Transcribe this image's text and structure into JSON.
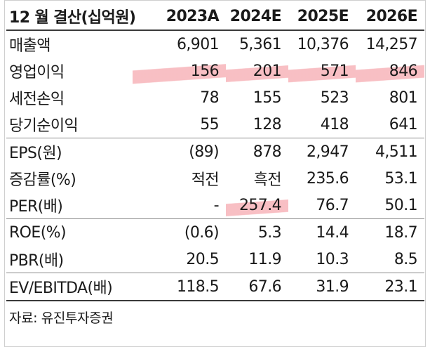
{
  "table": {
    "header": [
      "12 월 결산(십억원)",
      "2023A",
      "2024E",
      "2025E",
      "2026E"
    ],
    "rows": [
      {
        "label": "매출액",
        "values": [
          "6,901",
          "5,361",
          "10,376",
          "14,257"
        ]
      },
      {
        "label": "영업이익",
        "values": [
          "156",
          "201",
          "571",
          "846"
        ]
      },
      {
        "label": "세전손익",
        "values": [
          "78",
          "155",
          "523",
          "801"
        ]
      },
      {
        "label": "당기순이익",
        "values": [
          "55",
          "128",
          "418",
          "641"
        ]
      },
      {
        "label": "EPS(원)",
        "values": [
          "(89)",
          "878",
          "2,947",
          "4,511"
        ]
      },
      {
        "label": "증감률(%)",
        "values": [
          "적전",
          "흑전",
          "235.6",
          "53.1"
        ]
      },
      {
        "label": "PER(배)",
        "values": [
          "-",
          "257.4",
          "76.7",
          "50.1"
        ]
      },
      {
        "label": "ROE(%)",
        "values": [
          "(0.6)",
          "5.3",
          "14.4",
          "18.7"
        ]
      },
      {
        "label": "PBR(배)",
        "values": [
          "20.5",
          "11.9",
          "10.3",
          "8.5"
        ]
      },
      {
        "label": "EV/EBITDA(배)",
        "values": [
          "118.5",
          "67.6",
          "31.9",
          "23.1"
        ]
      }
    ]
  },
  "source": "자료: 유진투자증권",
  "colors": {
    "highlight": "#f7b4b9",
    "rule": "#3a3a3a"
  }
}
